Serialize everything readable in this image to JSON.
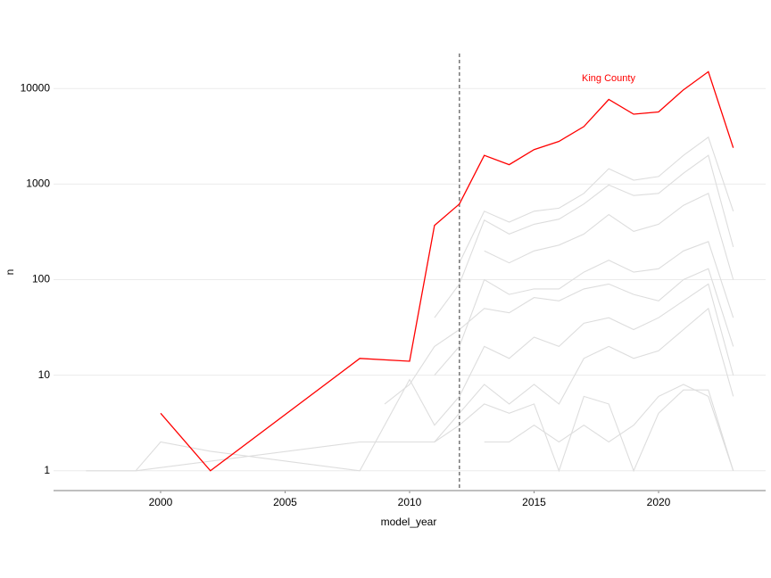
{
  "chart_data": {
    "type": "line",
    "log_y": true,
    "grid": true,
    "xlabel": "model_year",
    "ylabel": "n",
    "xlim": [
      1995.7,
      2024.3
    ],
    "xticks": [
      2000,
      2005,
      2010,
      2015,
      2020
    ],
    "ylim": [
      0.62,
      24300
    ],
    "yticks": [
      1,
      10,
      100,
      1000,
      10000
    ],
    "vline": 2012,
    "series": [
      {
        "color": "#dddddd",
        "x": [
          2012,
          2013,
          2014,
          2015,
          2016,
          2017,
          2018,
          2019,
          2020,
          2021,
          2022,
          2023
        ],
        "values": [
          150,
          520,
          400,
          520,
          560,
          800,
          1450,
          1100,
          1200,
          2000,
          3100,
          520
        ]
      },
      {
        "color": "#dddddd",
        "x": [
          2011,
          2012,
          2013,
          2014,
          2015,
          2016,
          2017,
          2018,
          2019,
          2020,
          2021,
          2022,
          2023
        ],
        "values": [
          40,
          90,
          420,
          300,
          380,
          430,
          620,
          980,
          760,
          800,
          1300,
          2000,
          220
        ]
      },
      {
        "color": "#dddddd",
        "x": [
          2013,
          2014,
          2015,
          2016,
          2017,
          2018,
          2019,
          2020,
          2021,
          2022,
          2023
        ],
        "values": [
          200,
          150,
          200,
          230,
          300,
          480,
          320,
          380,
          600,
          800,
          100
        ]
      },
      {
        "color": "#dddddd",
        "x": [
          2011,
          2012,
          2013,
          2014,
          2015,
          2016,
          2017,
          2018,
          2019,
          2020,
          2021,
          2022,
          2023
        ],
        "values": [
          10,
          20,
          100,
          70,
          80,
          80,
          120,
          160,
          120,
          130,
          200,
          250,
          40
        ]
      },
      {
        "color": "#dddddd",
        "x": [
          2009,
          2010,
          2011,
          2012,
          2013,
          2014,
          2015,
          2016,
          2017,
          2018,
          2019,
          2020,
          2021,
          2022,
          2023
        ],
        "values": [
          5,
          8,
          20,
          30,
          50,
          45,
          65,
          60,
          80,
          90,
          70,
          60,
          100,
          130,
          20
        ]
      },
      {
        "color": "#dddddd",
        "x": [
          1999,
          2000,
          2002,
          2008,
          2010,
          2011,
          2012,
          2013,
          2014,
          2015,
          2016,
          2017,
          2018,
          2019,
          2020,
          2021,
          2022,
          2023
        ],
        "values": [
          1,
          2,
          1.6,
          1,
          9,
          3,
          6,
          20,
          15,
          25,
          20,
          35,
          40,
          30,
          40,
          60,
          90,
          10
        ]
      },
      {
        "color": "#dddddd",
        "x": [
          1997,
          1999,
          2008,
          2010,
          2011,
          2012,
          2013,
          2014,
          2015,
          2016,
          2017,
          2018,
          2019,
          2020,
          2021,
          2022,
          2023
        ],
        "values": [
          1,
          1,
          2,
          2,
          2,
          4,
          8,
          5,
          8,
          5,
          15,
          20,
          15,
          18,
          30,
          50,
          6
        ]
      },
      {
        "color": "#dddddd",
        "x": [
          2011,
          2012,
          2013,
          2014,
          2015,
          2016,
          2017,
          2018,
          2019,
          2020,
          2021,
          2022,
          2023
        ],
        "values": [
          2,
          3,
          5,
          4,
          5,
          1,
          6,
          5,
          1,
          4,
          7,
          7,
          1
        ]
      },
      {
        "color": "#dddddd",
        "x": [
          2013,
          2014,
          2015,
          2016,
          2017,
          2018,
          2019,
          2020,
          2021,
          2022,
          2023
        ],
        "values": [
          2,
          2,
          3,
          2,
          3,
          2,
          3,
          6,
          8,
          6,
          1
        ]
      },
      {
        "name": "King County",
        "color": "#ff0000",
        "x": [
          2000,
          2002,
          2008,
          2010,
          2011,
          2012,
          2013,
          2014,
          2015,
          2016,
          2017,
          2018,
          2019,
          2020,
          2021,
          2022,
          2023
        ],
        "values": [
          4,
          1,
          15,
          14,
          370,
          620,
          2000,
          1600,
          2300,
          2800,
          4000,
          7700,
          5400,
          5700,
          9700,
          15000,
          2400
        ]
      }
    ]
  }
}
